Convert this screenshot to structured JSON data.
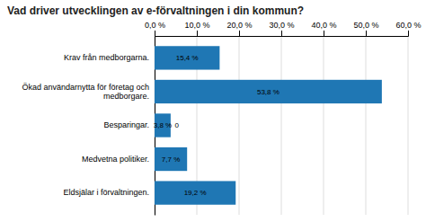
{
  "chart_data": {
    "type": "bar",
    "orientation": "horizontal",
    "title": "Vad driver utvecklingen av e-förvaltningen i din kommun?",
    "categories": [
      "Krav från medborgarna.",
      "Ökad användarnytta för företag och\nmedborgare.",
      "Besparingar.",
      "Medvetna politiker.",
      "Eldsjälar i förvaltningen."
    ],
    "values": [
      15.4,
      53.8,
      3.8,
      7.7,
      19.2
    ],
    "data_labels": true,
    "value_labels": [
      "15,4 %",
      "53,8 %",
      "3,8 %",
      "7,7 %",
      "19,2 %"
    ],
    "annotations": [
      {
        "text": "0",
        "x": 4.8,
        "y": "Besparingar."
      }
    ],
    "xlim": [
      0,
      60
    ],
    "xticks": [
      {
        "value": 0,
        "label": "0,0 %"
      },
      {
        "value": 10,
        "label": "10,0 %"
      },
      {
        "value": 20,
        "label": "20,0 %"
      },
      {
        "value": 30,
        "label": "30,0 %"
      },
      {
        "value": 40,
        "label": "40,0 %"
      },
      {
        "value": 50,
        "label": "50,0 %"
      },
      {
        "value": 60,
        "label": "60,0 %"
      }
    ],
    "grid": true
  }
}
